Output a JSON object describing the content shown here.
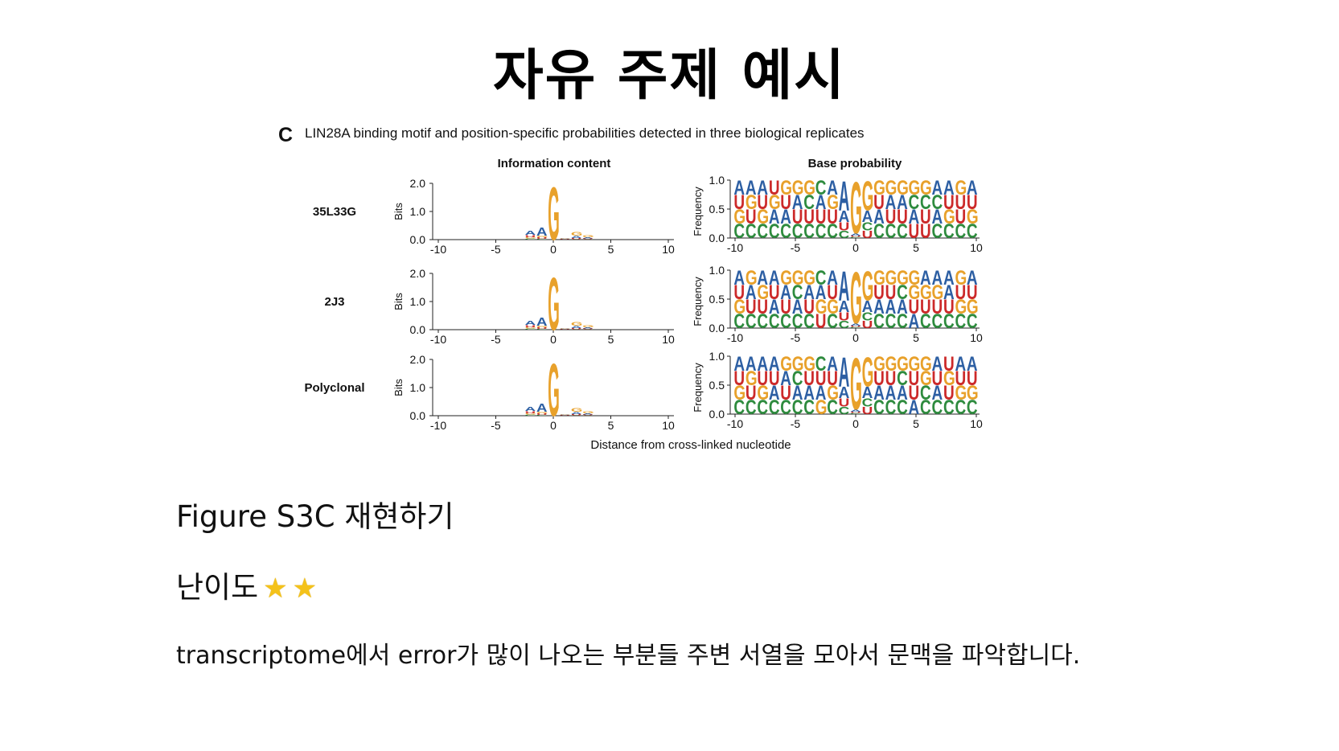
{
  "slide": {
    "title": "자유 주제 예시",
    "subtitle": "Figure S3C 재현하기",
    "difficulty_label": "난이도",
    "difficulty_stars": 2,
    "description": "transcriptome에서 error가 많이 나오는 부분들 주변 서열을 모아서 문맥을 파악합니다."
  },
  "figure": {
    "panel_letter": "C",
    "caption": "LIN28A binding motif and position-specific probabilities detected in three biological replicates",
    "left_header": "Information content",
    "right_header": "Base probability",
    "xlabel": "Distance from cross-linked nucleotide",
    "left_ylabel": "Bits",
    "right_ylabel": "Frequency",
    "left_yticks": [
      "2.0",
      "1.0",
      "0.0"
    ],
    "right_yticks": [
      "1.0",
      "0.5",
      "0.0"
    ],
    "xticks": [
      "-10",
      "-5",
      "0",
      "5",
      "10"
    ],
    "colors": {
      "A": "#2d5fa3",
      "C": "#2e8b3e",
      "G": "#e8a12b",
      "U": "#cc2a2a"
    }
  },
  "chart_data": [
    {
      "type": "sequence-logo",
      "title": "Information content",
      "replicate": "35L33G",
      "ylabel": "Bits",
      "ylim": [
        0,
        2
      ],
      "x": [
        -2,
        -1,
        0,
        1,
        2,
        3
      ],
      "bits": {
        "A": [
          0.16,
          0.3,
          0,
          0.02,
          0.08,
          0.03
        ],
        "G": [
          0.05,
          0.06,
          1.92,
          0.02,
          0.13,
          0.08
        ],
        "U": [
          0.08,
          0.05,
          0,
          0.02,
          0.04,
          0.03
        ],
        "C": [
          0.04,
          0.03,
          0,
          0.01,
          0.02,
          0.02
        ]
      }
    },
    {
      "type": "sequence-logo",
      "title": "Information content",
      "replicate": "2J3",
      "ylabel": "Bits",
      "ylim": [
        0,
        2
      ],
      "x": [
        -2,
        -1,
        0,
        1,
        2,
        3
      ],
      "bits": {
        "A": [
          0.16,
          0.3,
          0,
          0.02,
          0.08,
          0.03
        ],
        "G": [
          0.05,
          0.06,
          1.9,
          0.02,
          0.13,
          0.08
        ],
        "U": [
          0.08,
          0.05,
          0,
          0.02,
          0.04,
          0.03
        ],
        "C": [
          0.04,
          0.03,
          0,
          0.01,
          0.02,
          0.02
        ]
      }
    },
    {
      "type": "sequence-logo",
      "title": "Information content",
      "replicate": "Polyclonal",
      "ylabel": "Bits",
      "ylim": [
        0,
        2
      ],
      "x": [
        -2,
        -1,
        0,
        1,
        2,
        3
      ],
      "bits": {
        "A": [
          0.16,
          0.3,
          0,
          0.02,
          0.08,
          0.03
        ],
        "G": [
          0.05,
          0.06,
          1.9,
          0.02,
          0.13,
          0.08
        ],
        "U": [
          0.08,
          0.05,
          0,
          0.02,
          0.04,
          0.03
        ],
        "C": [
          0.04,
          0.03,
          0,
          0.01,
          0.02,
          0.02
        ]
      }
    },
    {
      "type": "stacked-letter-frequency",
      "title": "Base probability",
      "replicate": "35L33G",
      "ylabel": "Frequency",
      "ylim": [
        0,
        1
      ],
      "x_range": [
        -10,
        10
      ],
      "columns": [
        "AUGC",
        "AGUC",
        "AUGC",
        "UGAC",
        "GUAC",
        "GAUC",
        "GCUC",
        "CAUC",
        "AGUC",
        "AAUC",
        "GAUC",
        "GACU",
        "GUAC",
        "GAUC",
        "GAUC",
        "GCAU",
        "GCUU",
        "ACAC",
        "AUGC",
        "GUUC",
        "AUGC"
      ]
    },
    {
      "type": "stacked-letter-frequency",
      "title": "Base probability",
      "replicate": "2J3",
      "ylabel": "Frequency",
      "ylim": [
        0,
        1
      ],
      "x_range": [
        -10,
        10
      ],
      "columns": [
        "AUGC",
        "GAUC",
        "AGUC",
        "AUAC",
        "GAUC",
        "GCAC",
        "GAUC",
        "CAGU",
        "AUGC",
        "AAUC",
        "GAUC",
        "GACU",
        "GUAC",
        "GUAC",
        "GCAC",
        "GGUA",
        "AGUC",
        "AGUC",
        "AAUC",
        "GUGC",
        "AUGC"
      ]
    },
    {
      "type": "stacked-letter-frequency",
      "title": "Base probability",
      "replicate": "Polyclonal",
      "ylabel": "Frequency",
      "ylim": [
        0,
        1
      ],
      "x_range": [
        -10,
        10
      ],
      "columns": [
        "AUGC",
        "AGUC",
        "AUGC",
        "AUAC",
        "GAUC",
        "GCAC",
        "GUAC",
        "CUAG",
        "AUGC",
        "AAUC",
        "GAUC",
        "GACU",
        "GUAC",
        "GUAC",
        "GCAC",
        "GUUA",
        "GGCC",
        "AUAC",
        "UGUC",
        "AUGC",
        "AUGC"
      ]
    }
  ]
}
